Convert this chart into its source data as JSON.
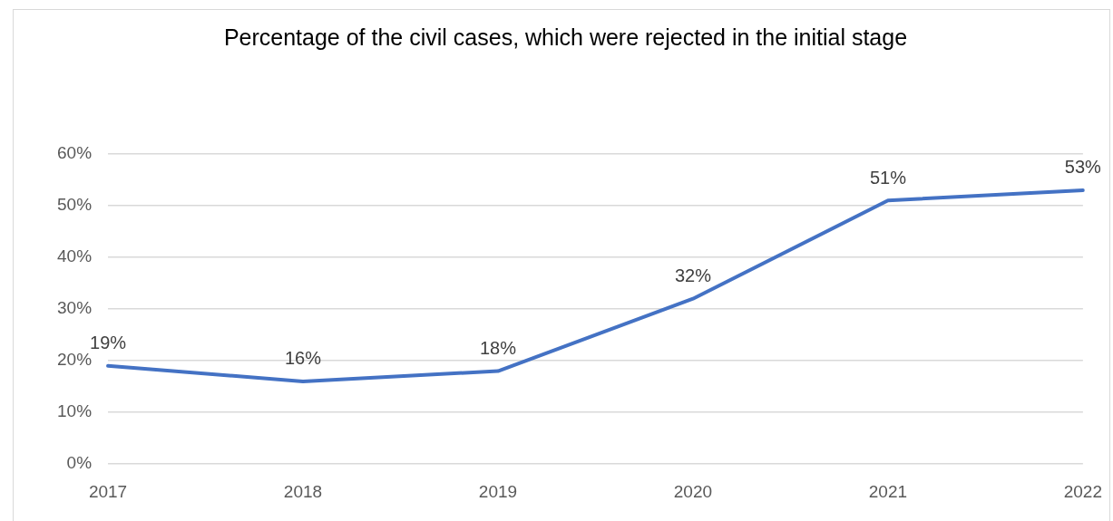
{
  "chart_data": {
    "type": "line",
    "title": "Percentage of the civil cases, which were rejected in the initial stage",
    "categories": [
      "2017",
      "2018",
      "2019",
      "2020",
      "2021",
      "2022"
    ],
    "series": [
      {
        "color": "#4472c4",
        "values": [
          19,
          16,
          18,
          32,
          51,
          53
        ],
        "value_labels": [
          "19%",
          "16%",
          "18%",
          "32%",
          "51%",
          "53%"
        ]
      }
    ],
    "ylim": [
      0,
      60
    ],
    "yticks": [
      {
        "value": 0,
        "label": "0%"
      },
      {
        "value": 10,
        "label": "10%"
      },
      {
        "value": 20,
        "label": "20%"
      },
      {
        "value": 30,
        "label": "30%"
      },
      {
        "value": 40,
        "label": "40%"
      },
      {
        "value": 50,
        "label": "50%"
      },
      {
        "value": 60,
        "label": "60%"
      }
    ],
    "grid": "y",
    "legend": false,
    "marker": "none",
    "line_style": "solid"
  }
}
